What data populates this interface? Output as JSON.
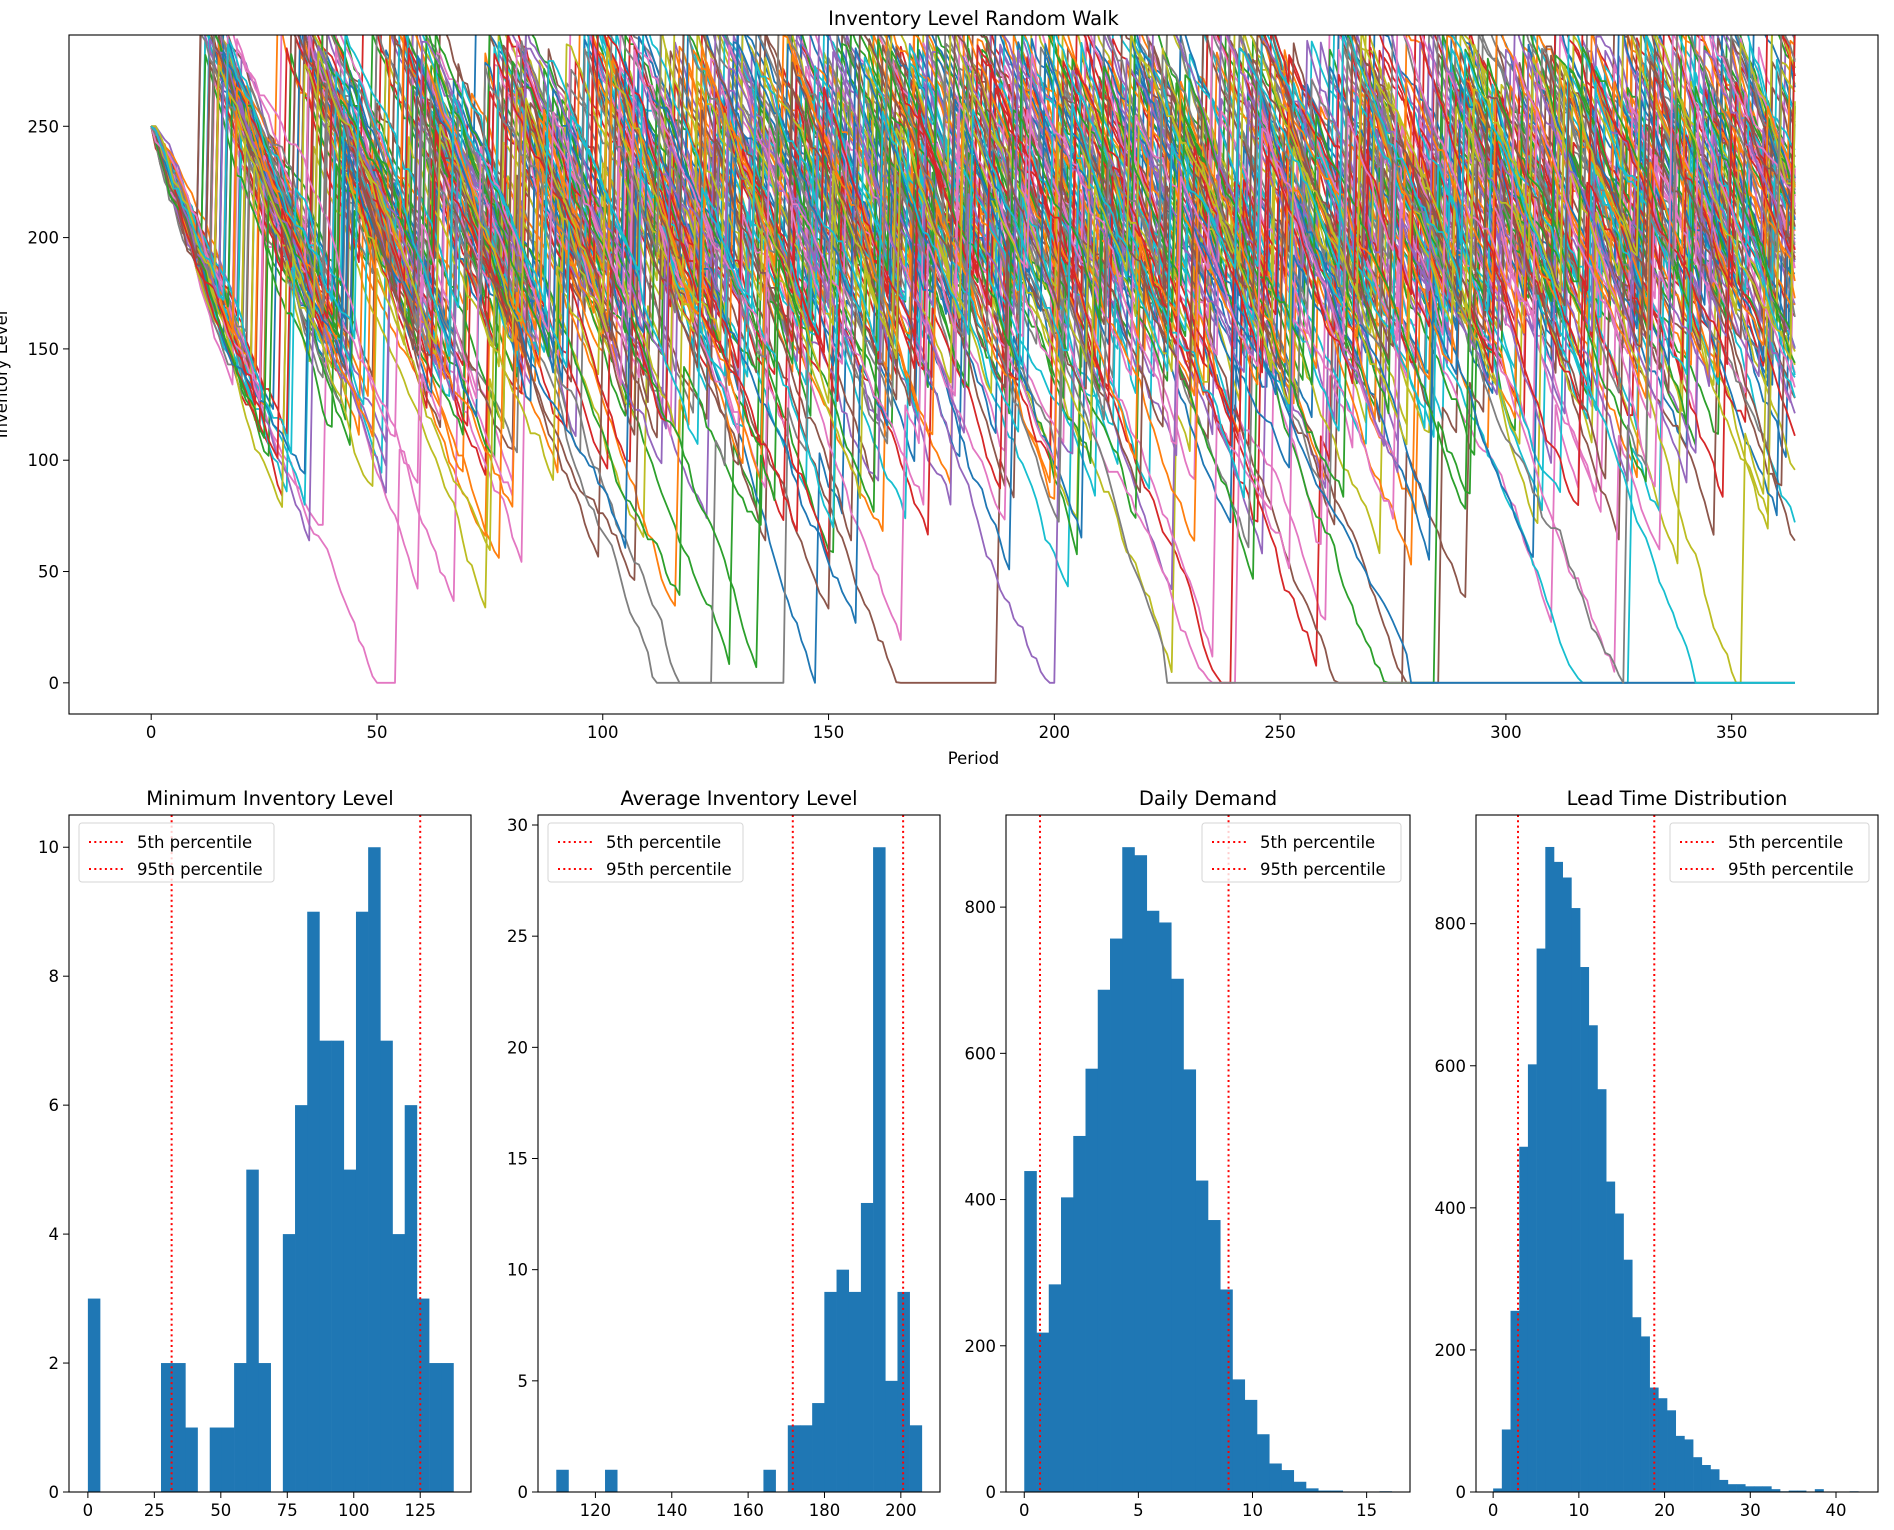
{
  "chart_data": [
    {
      "type": "line",
      "title": "Inventory Level Random Walk",
      "xlabel": "Period",
      "ylabel": "Inventory Level",
      "xlim": [
        -18.2,
        382.4
      ],
      "ylim": [
        -14,
        291
      ],
      "xticks": [
        0,
        50,
        100,
        150,
        200,
        250,
        300,
        350
      ],
      "yticks": [
        0,
        50,
        100,
        150,
        200,
        250
      ],
      "grid": false,
      "n_series": 100,
      "periods": [
        0,
        364
      ],
      "initial_level": 250,
      "stockout_series": [
        {
          "color": "#7f7f7f",
          "reaches_zero_at": 225
        },
        {
          "color": "#1f77b4",
          "reaches_zero_at": 279
        },
        {
          "color": "#17becf",
          "reaches_zero_at": 342
        }
      ],
      "colors": [
        "#1f77b4",
        "#ff7f0e",
        "#2ca02c",
        "#d62728",
        "#9467bd",
        "#8c564b",
        "#e377c2",
        "#7f7f7f",
        "#bcbd22",
        "#17becf"
      ]
    },
    {
      "type": "bar",
      "title": "Minimum Inventory Level",
      "bin_range": [
        0,
        137.5
      ],
      "counts": [
        3,
        0,
        0,
        0,
        0,
        0,
        2,
        2,
        1,
        0,
        1,
        1,
        2,
        5,
        2,
        0,
        4,
        6,
        9,
        7,
        7,
        5,
        9,
        10,
        7,
        4,
        6,
        3,
        2,
        2
      ],
      "xlim": [
        -7.1,
        144.1
      ],
      "ylim": [
        0,
        10.5
      ],
      "xticks": [
        0,
        25,
        50,
        75,
        100,
        125
      ],
      "yticks": [
        0,
        2,
        4,
        6,
        8,
        10
      ],
      "percentiles": [
        {
          "label": "5th percentile",
          "value": 31.5
        },
        {
          "label": "95th percentile",
          "value": 125
        }
      ],
      "legend_placement": "upper-left",
      "bar_color": "#1f77b4",
      "line_color": "#ff0000"
    },
    {
      "type": "bar",
      "title": "Average Inventory Level",
      "bin_range": [
        109.75,
        205.5
      ],
      "counts": [
        1,
        0,
        0,
        0,
        1,
        0,
        0,
        0,
        0,
        0,
        0,
        0,
        0,
        0,
        0,
        0,
        0,
        1,
        0,
        3,
        3,
        4,
        9,
        10,
        9,
        13,
        29,
        5,
        9,
        3
      ],
      "xlim": [
        104.96,
        210.26
      ],
      "ylim": [
        0,
        30.45
      ],
      "xticks": [
        120,
        140,
        160,
        180,
        200
      ],
      "yticks": [
        0,
        5,
        10,
        15,
        20,
        25,
        30
      ],
      "percentiles": [
        {
          "label": "5th percentile",
          "value": 171.7
        },
        {
          "label": "95th percentile",
          "value": 200.6
        }
      ],
      "legend_placement": "upper-left",
      "bar_color": "#1f77b4",
      "line_color": "#ff0000"
    },
    {
      "type": "bar",
      "title": "Daily Demand",
      "bin_range": [
        0,
        16.1
      ],
      "counts": [
        439,
        218,
        284,
        403,
        487,
        579,
        687,
        757,
        882,
        871,
        795,
        779,
        702,
        578,
        426,
        372,
        277,
        154,
        126,
        79,
        39,
        30,
        14,
        5,
        2,
        2,
        0,
        0,
        0,
        1
      ],
      "xlim": [
        -0.8,
        16.9
      ],
      "ylim": [
        0,
        926
      ],
      "xticks": [
        0,
        5,
        10,
        15
      ],
      "yticks": [
        0,
        200,
        400,
        600,
        800
      ],
      "percentiles": [
        {
          "label": "5th percentile",
          "value": 0.69
        },
        {
          "label": "95th percentile",
          "value": 8.95
        }
      ],
      "legend_placement": "upper-right",
      "bar_color": "#1f77b4",
      "line_color": "#ff0000"
    },
    {
      "type": "bar",
      "title": "Lead Time Distribution",
      "bin_range": [
        0,
        42.6
      ],
      "counts": [
        5,
        88,
        255,
        486,
        602,
        765,
        908,
        887,
        865,
        822,
        739,
        657,
        567,
        437,
        392,
        327,
        246,
        219,
        147,
        132,
        115,
        79,
        74,
        49,
        38,
        32,
        17,
        11,
        11,
        8,
        8,
        8,
        4,
        1,
        2,
        2,
        0,
        4,
        0,
        0,
        0,
        1
      ],
      "xlim": [
        -2.0,
        44.9
      ],
      "ylim": [
        0,
        953
      ],
      "xticks": [
        0,
        10,
        20,
        30,
        40
      ],
      "yticks": [
        0,
        200,
        400,
        600,
        800
      ],
      "percentiles": [
        {
          "label": "5th percentile",
          "value": 2.9
        },
        {
          "label": "95th percentile",
          "value": 18.8
        }
      ],
      "legend_placement": "upper-right",
      "bar_color": "#1f77b4",
      "line_color": "#ff0000"
    }
  ]
}
